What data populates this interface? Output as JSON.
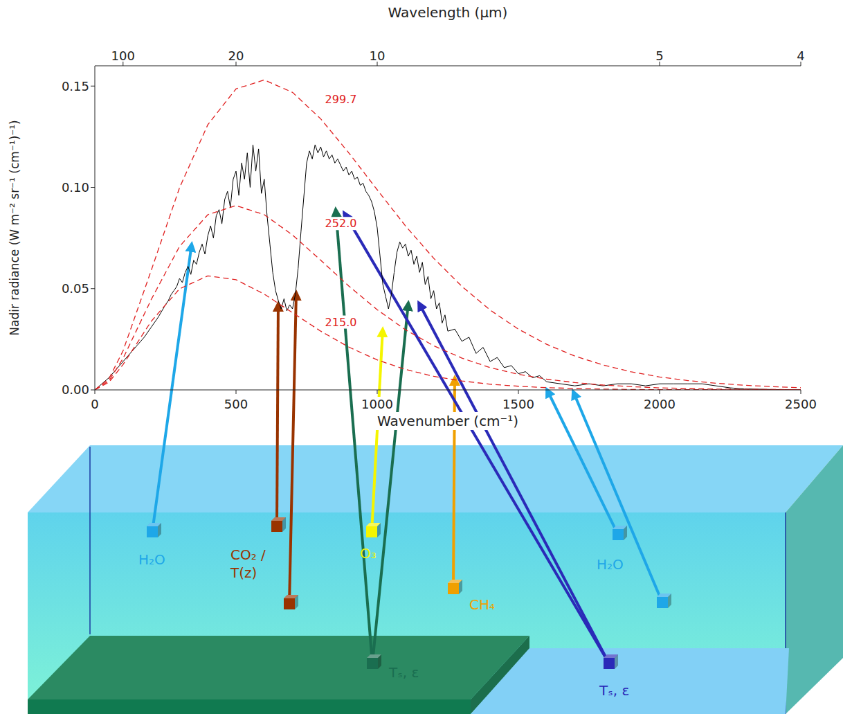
{
  "chart_data": {
    "type": "line",
    "x_label": "Wavenumber (cm⁻¹)",
    "y_label": "Nadir radiance (W m⁻² sr⁻¹ (cm⁻¹)⁻¹)",
    "x2_label": "Wavelength (µm)",
    "xlim": [
      0,
      2500
    ],
    "xticks": [
      0,
      500,
      1000,
      1500,
      2000,
      2500
    ],
    "x2lim": [
      0,
      2500
    ],
    "x2ticks": [
      100,
      {
        "value": 500,
        "label": "20"
      },
      {
        "value": 1000,
        "label": "10"
      },
      {
        "value": 2000,
        "label": "5"
      },
      {
        "value": 2500,
        "label": "4"
      }
    ],
    "ylim": [
      0,
      0.16
    ],
    "yticks": [
      {
        "value": 0,
        "label": "0.00"
      },
      0.05,
      {
        "value": 0.1,
        "label": "0.10"
      },
      0.15
    ],
    "grid": false,
    "series": [
      {
        "color": "#000000",
        "line_style": "solid",
        "x": [
          0,
          25,
          50,
          75,
          100,
          125,
          150,
          175,
          200,
          225,
          250,
          260,
          270,
          280,
          290,
          300,
          310,
          320,
          330,
          340,
          350,
          360,
          370,
          380,
          390,
          400,
          410,
          420,
          430,
          440,
          450,
          460,
          470,
          480,
          490,
          500,
          510,
          520,
          530,
          540,
          550,
          560,
          570,
          580,
          590,
          600,
          610,
          620,
          630,
          640,
          650,
          660,
          670,
          680,
          690,
          700,
          710,
          720,
          730,
          740,
          750,
          760,
          770,
          780,
          790,
          800,
          810,
          820,
          830,
          840,
          850,
          860,
          870,
          880,
          890,
          900,
          910,
          920,
          930,
          940,
          950,
          960,
          970,
          980,
          990,
          1000,
          1010,
          1020,
          1030,
          1040,
          1050,
          1060,
          1070,
          1080,
          1090,
          1100,
          1110,
          1120,
          1130,
          1140,
          1150,
          1160,
          1170,
          1180,
          1190,
          1200,
          1210,
          1220,
          1230,
          1240,
          1250,
          1275,
          1300,
          1325,
          1350,
          1375,
          1400,
          1425,
          1450,
          1475,
          1500,
          1525,
          1550,
          1575,
          1600,
          1650,
          1700,
          1750,
          1800,
          1850,
          1900,
          1950,
          2000,
          2050,
          2100,
          2150,
          2200,
          2250,
          2300,
          2400,
          2500
        ],
        "values": [
          0,
          0.003,
          0.006,
          0.01,
          0.014,
          0.018,
          0.022,
          0.026,
          0.031,
          0.036,
          0.042,
          0.044,
          0.047,
          0.049,
          0.051,
          0.055,
          0.053,
          0.058,
          0.061,
          0.057,
          0.064,
          0.062,
          0.068,
          0.072,
          0.067,
          0.076,
          0.081,
          0.075,
          0.086,
          0.089,
          0.082,
          0.094,
          0.098,
          0.09,
          0.104,
          0.108,
          0.096,
          0.112,
          0.104,
          0.117,
          0.1,
          0.121,
          0.108,
          0.119,
          0.097,
          0.104,
          0.086,
          0.072,
          0.058,
          0.049,
          0.044,
          0.04,
          0.045,
          0.039,
          0.042,
          0.04,
          0.047,
          0.06,
          0.078,
          0.095,
          0.112,
          0.118,
          0.114,
          0.121,
          0.117,
          0.12,
          0.115,
          0.118,
          0.114,
          0.116,
          0.112,
          0.114,
          0.111,
          0.108,
          0.11,
          0.106,
          0.108,
          0.104,
          0.105,
          0.101,
          0.102,
          0.098,
          0.096,
          0.093,
          0.088,
          0.08,
          0.066,
          0.052,
          0.046,
          0.04,
          0.047,
          0.058,
          0.068,
          0.073,
          0.07,
          0.072,
          0.066,
          0.069,
          0.062,
          0.066,
          0.058,
          0.063,
          0.052,
          0.056,
          0.045,
          0.049,
          0.04,
          0.043,
          0.033,
          0.037,
          0.029,
          0.03,
          0.024,
          0.026,
          0.018,
          0.021,
          0.014,
          0.016,
          0.011,
          0.012,
          0.008,
          0.009,
          0.006,
          0.007,
          0.004,
          0.003,
          0.002,
          0.003,
          0.002,
          0.003,
          0.003,
          0.002,
          0.003,
          0.003,
          0.003,
          0.003,
          0.002,
          0.001,
          0.0005,
          0.0002,
          0
        ]
      },
      {
        "name": "299.7",
        "color": "#e02020",
        "line_style": "dashed",
        "x": [
          0,
          50,
          100,
          200,
          300,
          400,
          500,
          600,
          700,
          800,
          900,
          1000,
          1100,
          1200,
          1300,
          1400,
          1500,
          1600,
          1700,
          1800,
          1900,
          2000,
          2100,
          2200,
          2300,
          2400,
          2500
        ],
        "values": [
          0,
          0.0055,
          0.0193,
          0.0591,
          0.0998,
          0.1309,
          0.1486,
          0.153,
          0.1469,
          0.1338,
          0.1169,
          0.0988,
          0.081,
          0.065,
          0.0511,
          0.0394,
          0.03,
          0.0225,
          0.0167,
          0.0123,
          0.0089,
          0.0064,
          0.0046,
          0.0033,
          0.0023,
          0.0016,
          0.0011
        ]
      },
      {
        "name": "252.0",
        "color": "#e02020",
        "line_style": "dashed",
        "x": [
          0,
          50,
          100,
          200,
          300,
          400,
          500,
          600,
          700,
          800,
          900,
          1000,
          1100,
          1200,
          1300,
          1400,
          1500,
          1600,
          1700,
          1800,
          1900,
          2000,
          2100,
          2200,
          2300,
          2400,
          2500
        ],
        "values": [
          0,
          0.0045,
          0.0155,
          0.0447,
          0.0708,
          0.0865,
          0.091,
          0.0865,
          0.0765,
          0.064,
          0.0512,
          0.0396,
          0.0297,
          0.0218,
          0.0157,
          0.011,
          0.0077,
          0.0053,
          0.0036,
          0.0024,
          0.0016,
          0.001,
          0.0007,
          0.0004,
          0.0003,
          0.0002,
          0.0001
        ]
      },
      {
        "name": "215.0",
        "color": "#e02020",
        "line_style": "dashed",
        "x": [
          0,
          50,
          100,
          200,
          300,
          400,
          500,
          600,
          700,
          800,
          900,
          1000,
          1100,
          1200,
          1300,
          1400,
          1500,
          1600,
          1700,
          1800,
          1900,
          2000,
          2100,
          2200,
          2300,
          2400,
          2500
        ],
        "values": [
          0,
          0.0038,
          0.0125,
          0.0339,
          0.0499,
          0.0563,
          0.0544,
          0.0473,
          0.0381,
          0.029,
          0.0211,
          0.0148,
          0.0101,
          0.0067,
          0.0044,
          0.0028,
          0.0018,
          0.0011,
          0.0007,
          0.0004,
          0.0002,
          0.0001,
          0.0001,
          0.0001,
          0,
          0,
          0
        ]
      }
    ]
  },
  "diagram": {
    "items": [
      {
        "labels": [
          "H₂O"
        ],
        "color": "#1ea7e8"
      },
      {
        "labels": [
          "CO₂ /",
          "T(z)"
        ],
        "color": "#993300"
      },
      {
        "labels": [
          "O₃"
        ],
        "color": "#f5f500"
      },
      {
        "labels": [
          "CH₄"
        ],
        "color": "#f0a000"
      },
      {
        "labels": [
          "H₂O"
        ],
        "color": "#1ea7e8"
      },
      {
        "labels": [
          "Tₛ, ε"
        ],
        "color": "#1a6e50"
      },
      {
        "labels": [
          "Tₛ, ε"
        ],
        "color": "#2a2ab8"
      }
    ]
  }
}
